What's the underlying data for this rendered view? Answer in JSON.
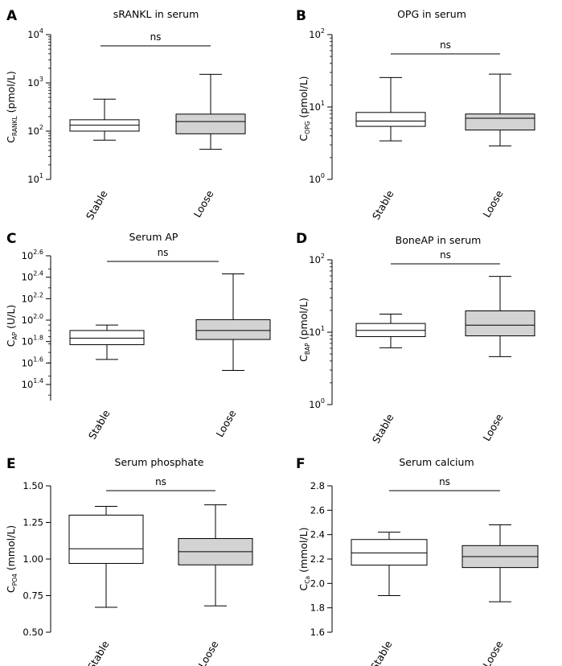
{
  "chart_data": [
    {
      "type": "box",
      "panel": "A",
      "title": "sRANKL in serum",
      "ylabel": {
        "main": "C",
        "sub": "RANKL",
        "rest": " (pmol/L)"
      },
      "scale": "log",
      "ylim": [
        10,
        10000
      ],
      "ticks": [
        {
          "v": 10,
          "base": "10",
          "exp": "1"
        },
        {
          "v": 100,
          "base": "10",
          "exp": "2"
        },
        {
          "v": 1000,
          "base": "10",
          "exp": "3"
        },
        {
          "v": 10000,
          "base": "10",
          "exp": "4"
        }
      ],
      "categories": [
        "Stable",
        "Loose"
      ],
      "boxes": [
        {
          "name": "Stable",
          "min": 65,
          "q1": 100,
          "median": 133,
          "q3": 172,
          "max": 460,
          "fill": "#ffffff"
        },
        {
          "name": "Loose",
          "min": 42,
          "q1": 88,
          "median": 158,
          "q3": 225,
          "max": 1500,
          "fill": "#d3d3d3"
        }
      ],
      "annotation": "ns"
    },
    {
      "type": "box",
      "panel": "B",
      "title": "OPG in serum",
      "ylabel": {
        "main": "C",
        "sub": "OPG",
        "rest": " (pmol/L)"
      },
      "scale": "log",
      "ylim": [
        1,
        100
      ],
      "ticks": [
        {
          "v": 1,
          "base": "10",
          "exp": "0"
        },
        {
          "v": 10,
          "base": "10",
          "exp": "1"
        },
        {
          "v": 100,
          "base": "10",
          "exp": "2"
        }
      ],
      "categories": [
        "Stable",
        "Loose"
      ],
      "boxes": [
        {
          "name": "Stable",
          "min": 3.4,
          "q1": 5.4,
          "median": 6.4,
          "q3": 8.4,
          "max": 25.5,
          "fill": "#ffffff"
        },
        {
          "name": "Loose",
          "min": 2.9,
          "q1": 4.8,
          "median": 7.0,
          "q3": 8.0,
          "max": 28.5,
          "fill": "#d3d3d3"
        }
      ],
      "annotation": "ns"
    },
    {
      "type": "box",
      "panel": "C",
      "title": "Serum AP",
      "ylabel": {
        "main": "C",
        "sub": "AP",
        "rest": " (U/L)"
      },
      "scale": "log",
      "ylim": [
        17.78,
        398.1
      ],
      "ticks": [
        {
          "v": 25.12,
          "base": "10",
          "exp": "1.4"
        },
        {
          "v": 39.81,
          "base": "10",
          "exp": "1.6"
        },
        {
          "v": 63.1,
          "base": "10",
          "exp": "1.8"
        },
        {
          "v": 100,
          "base": "10",
          "exp": "2.0"
        },
        {
          "v": 158.5,
          "base": "10",
          "exp": "2.2"
        },
        {
          "v": 251.2,
          "base": "10",
          "exp": "2.4"
        },
        {
          "v": 398.1,
          "base": "10",
          "exp": "2.6"
        }
      ],
      "categories": [
        "Stable",
        "Loose"
      ],
      "boxes": [
        {
          "name": "Stable",
          "min": 43,
          "q1": 59,
          "median": 68,
          "q3": 80,
          "max": 90,
          "fill": "#ffffff"
        },
        {
          "name": "Loose",
          "min": 34,
          "q1": 66,
          "median": 80,
          "q3": 101,
          "max": 270,
          "fill": "#d3d3d3"
        }
      ],
      "annotation": "ns"
    },
    {
      "type": "box",
      "panel": "D",
      "title": "BoneAP in serum",
      "ylabel": {
        "main": "C",
        "sub": "BAP",
        "rest": " (pmol/L)"
      },
      "scale": "log",
      "ylim": [
        1,
        100
      ],
      "ticks": [
        {
          "v": 1,
          "base": "10",
          "exp": "0"
        },
        {
          "v": 10,
          "base": "10",
          "exp": "1"
        },
        {
          "v": 100,
          "base": "10",
          "exp": "2"
        }
      ],
      "categories": [
        "Stable",
        "Loose"
      ],
      "boxes": [
        {
          "name": "Stable",
          "min": 6.1,
          "q1": 8.7,
          "median": 10.6,
          "q3": 13.2,
          "max": 17.8,
          "fill": "#ffffff"
        },
        {
          "name": "Loose",
          "min": 4.6,
          "q1": 8.9,
          "median": 12.5,
          "q3": 19.7,
          "max": 59,
          "fill": "#d3d3d3"
        }
      ],
      "annotation": "ns"
    },
    {
      "type": "box",
      "panel": "E",
      "title": "Serum phosphate",
      "ylabel": {
        "main": "C",
        "sub": "PO4",
        "rest": " (mmol/L)"
      },
      "scale": "linear",
      "ylim": [
        0.5,
        1.5
      ],
      "ticks": [
        {
          "v": 0.5,
          "label": "0.50"
        },
        {
          "v": 0.75,
          "label": "0.75"
        },
        {
          "v": 1.0,
          "label": "1.00"
        },
        {
          "v": 1.25,
          "label": "1.25"
        },
        {
          "v": 1.5,
          "label": "1.50"
        }
      ],
      "categories": [
        "Stable",
        "Loose"
      ],
      "boxes": [
        {
          "name": "Stable",
          "min": 0.67,
          "q1": 0.97,
          "median": 1.07,
          "q3": 1.3,
          "max": 1.36,
          "fill": "#ffffff"
        },
        {
          "name": "Loose",
          "min": 0.68,
          "q1": 0.96,
          "median": 1.05,
          "q3": 1.14,
          "max": 1.37,
          "fill": "#d3d3d3"
        }
      ],
      "annotation": "ns"
    },
    {
      "type": "box",
      "panel": "F",
      "title": "Serum calcium",
      "ylabel": {
        "main": "C",
        "sub": "Ca",
        "rest": " (mmol/L)"
      },
      "scale": "linear",
      "ylim": [
        1.6,
        2.8
      ],
      "ticks": [
        {
          "v": 1.6,
          "label": "1.6"
        },
        {
          "v": 1.8,
          "label": "1.8"
        },
        {
          "v": 2.0,
          "label": "2.0"
        },
        {
          "v": 2.2,
          "label": "2.2"
        },
        {
          "v": 2.4,
          "label": "2.4"
        },
        {
          "v": 2.6,
          "label": "2.6"
        },
        {
          "v": 2.8,
          "label": "2.8"
        }
      ],
      "categories": [
        "Stable",
        "Loose"
      ],
      "boxes": [
        {
          "name": "Stable",
          "min": 1.9,
          "q1": 2.15,
          "median": 2.25,
          "q3": 2.36,
          "max": 2.42,
          "fill": "#ffffff"
        },
        {
          "name": "Loose",
          "min": 1.85,
          "q1": 2.13,
          "median": 2.22,
          "q3": 2.31,
          "max": 2.48,
          "fill": "#d3d3d3"
        }
      ],
      "annotation": "ns"
    }
  ]
}
